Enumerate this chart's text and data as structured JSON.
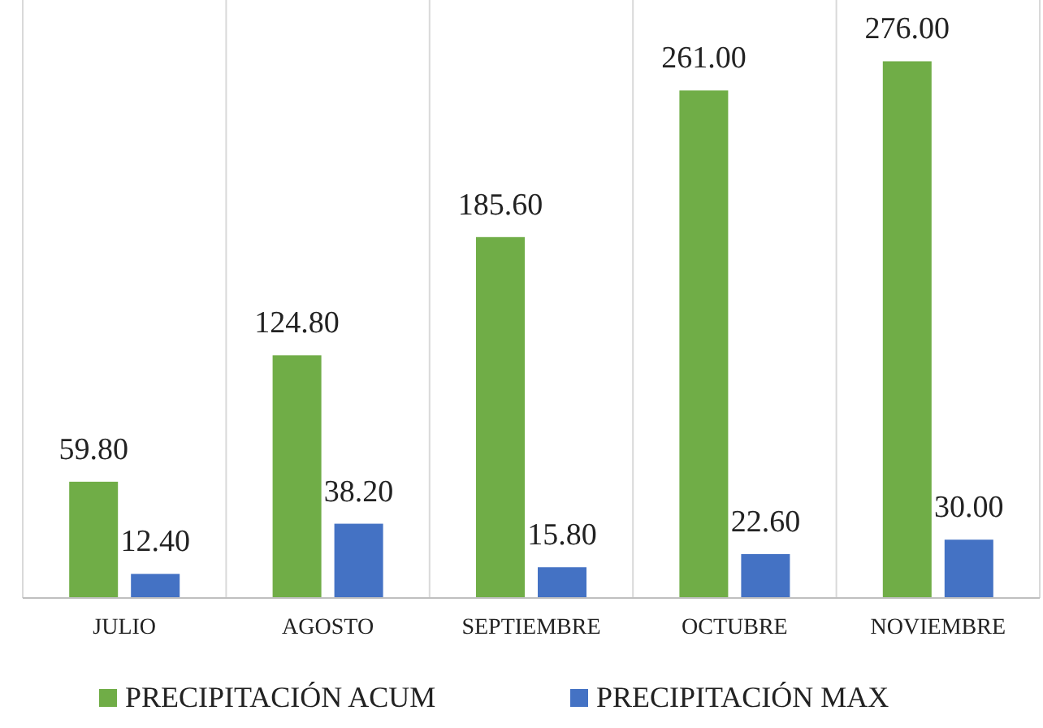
{
  "chart_data": {
    "type": "bar",
    "categories": [
      "JULIO",
      "AGOSTO",
      "SEPTIEMBRE",
      "OCTUBRE",
      "NOVIEMBRE"
    ],
    "series": [
      {
        "name": "PRECIPITACIÓN ACUM",
        "color": "#70ad47",
        "values": [
          59.8,
          124.8,
          185.6,
          261.0,
          276.0
        ],
        "value_labels": [
          "59.80",
          "124.80",
          "185.60",
          "261.00",
          "276.00"
        ]
      },
      {
        "name": "PRECIPITACIÓN MAX",
        "color": "#4472c4",
        "values": [
          12.4,
          38.2,
          15.8,
          22.6,
          30.0
        ],
        "value_labels": [
          "12.40",
          "38.20",
          "15.80",
          "22.60",
          "30.00"
        ]
      }
    ],
    "legend": "bottom"
  }
}
